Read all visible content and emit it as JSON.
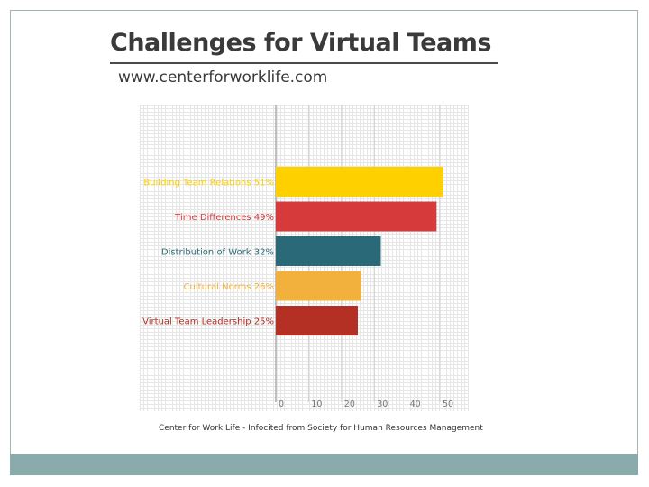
{
  "slide": {
    "title": "Challenges for Virtual Teams",
    "subtitle": "www.centerforworklife.com",
    "source": "Center for Work Life - Infocited from Society for Human Resources Management",
    "colors": {
      "band": "#8aabab",
      "frame": "#9fb5b5"
    }
  },
  "chart_data": {
    "type": "bar",
    "orientation": "horizontal",
    "categories": [
      "Building Team Relations 51%",
      "Time Differences 49%",
      "Distribution of Work 32%",
      "Cultural Norms 26%",
      "Virtual Team Leadership 25%"
    ],
    "values": [
      51,
      49,
      32,
      26,
      25
    ],
    "colors": [
      "#ffd000",
      "#d63a3a",
      "#2a6a78",
      "#f2b13c",
      "#b43024"
    ],
    "xlim": [
      0,
      50
    ],
    "xticks": [
      "0",
      "10",
      "20",
      "30",
      "40",
      "50"
    ],
    "grid": true
  }
}
